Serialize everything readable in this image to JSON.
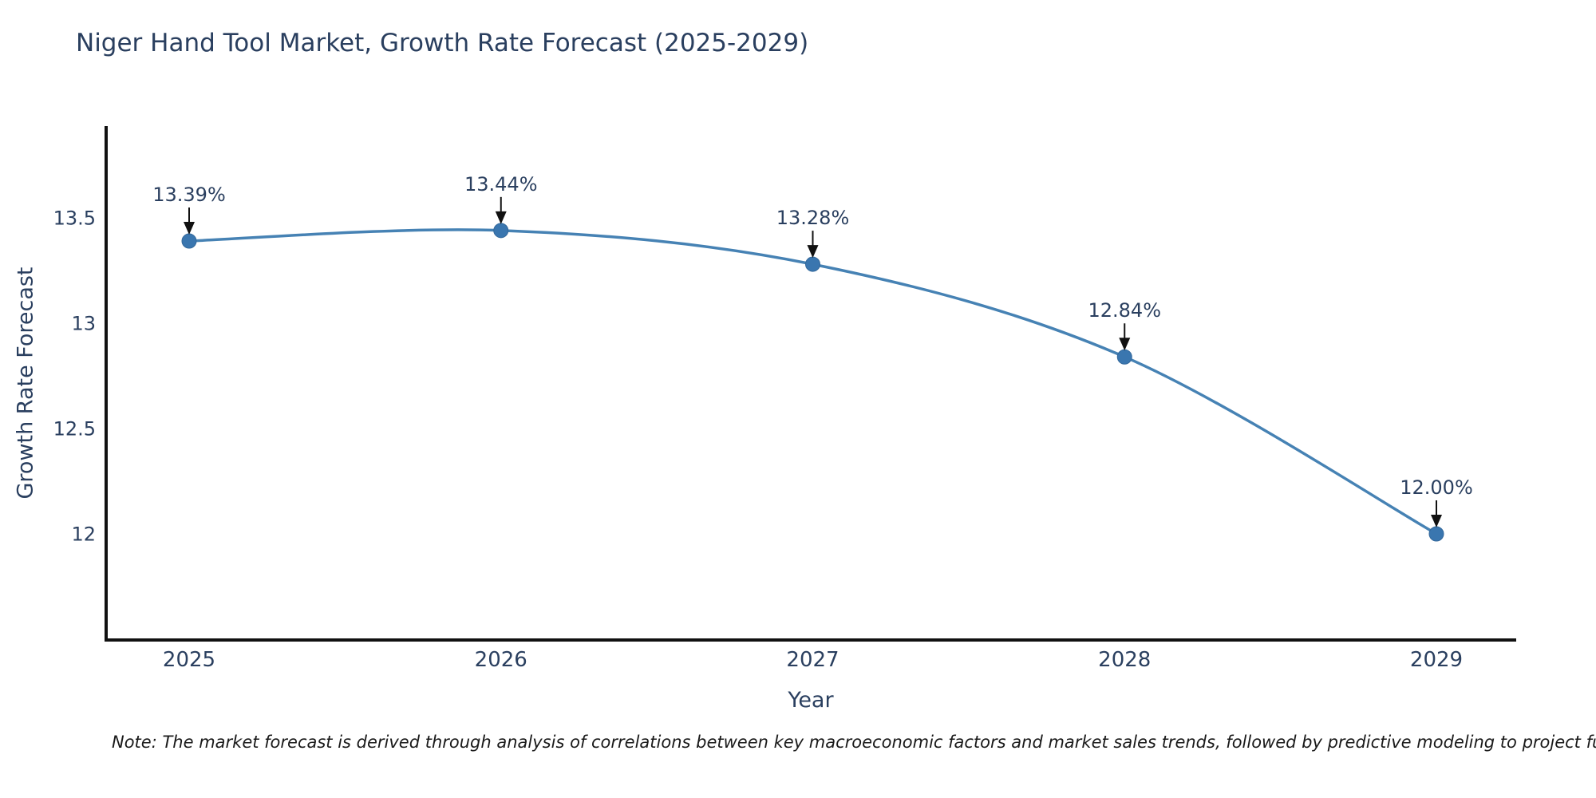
{
  "chart_data": {
    "type": "line",
    "title": "Niger Hand Tool Market, Growth Rate Forecast (2025-2029)",
    "xlabel": "Year",
    "ylabel": "Growth Rate Forecast",
    "x": [
      2025,
      2026,
      2027,
      2028,
      2029
    ],
    "y": [
      13.39,
      13.44,
      13.28,
      12.84,
      12.0
    ],
    "point_labels": [
      "13.39%",
      "13.44%",
      "13.28%",
      "12.84%",
      "12.00%"
    ],
    "xtick_labels": [
      "2025",
      "2026",
      "2027",
      "2028",
      "2029"
    ],
    "ytick_values": [
      12,
      12.5,
      13,
      13.5
    ],
    "ytick_labels": [
      "12",
      "12.5",
      "13",
      "13.5"
    ],
    "xlim": [
      2024.73,
      2029.26
    ],
    "ylim": [
      11.5,
      13.93
    ],
    "grid": false,
    "legend": "none",
    "line_shape": "spline",
    "line_color": "#4682b4",
    "marker_color": "#3a76af",
    "marker_edge_color": "#33689b",
    "axis_color": "#111111",
    "text_color": "#2a3f5f",
    "annotation_arrow_color": "#111111",
    "note": "Note: The market forecast is derived through analysis of correlations between key macroeconomic factors and market sales trends, followed by predictive modeling to project future sales."
  }
}
